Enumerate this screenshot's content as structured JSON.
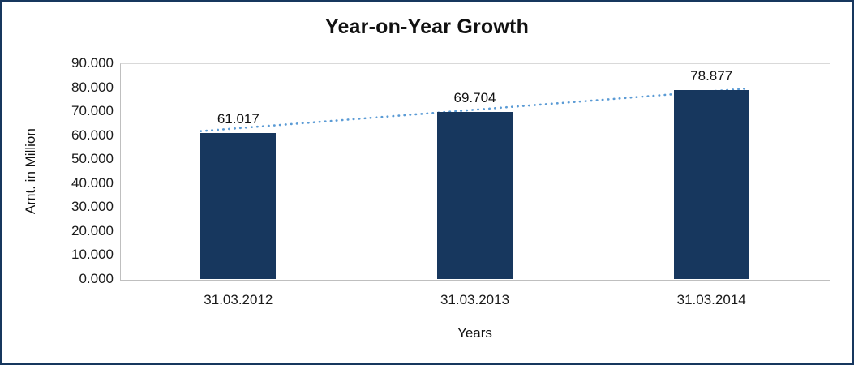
{
  "chart_data": {
    "type": "bar",
    "title": "Year-on-Year Growth",
    "xlabel": "Years",
    "ylabel": "Amt. in Million",
    "categories": [
      "31.03.2012",
      "31.03.2013",
      "31.03.2014"
    ],
    "values": [
      61.017,
      69.704,
      78.877
    ],
    "value_labels": [
      "61.017",
      "69.704",
      "78.877"
    ],
    "y_ticks": [
      "0.000",
      "10.000",
      "20.000",
      "30.000",
      "40.000",
      "50.000",
      "60.000",
      "70.000",
      "80.000",
      "90.000"
    ],
    "ylim": [
      0,
      90
    ],
    "grid": "top-border-only",
    "legend": "none",
    "trendline_style": "dotted",
    "colors": {
      "bar": "#17375E",
      "trendline": "#5B9BD5",
      "frame_border": "#17375E",
      "axis_line": "#BFBFBF",
      "top_line": "#D9D9D9",
      "text": "#111111"
    }
  }
}
